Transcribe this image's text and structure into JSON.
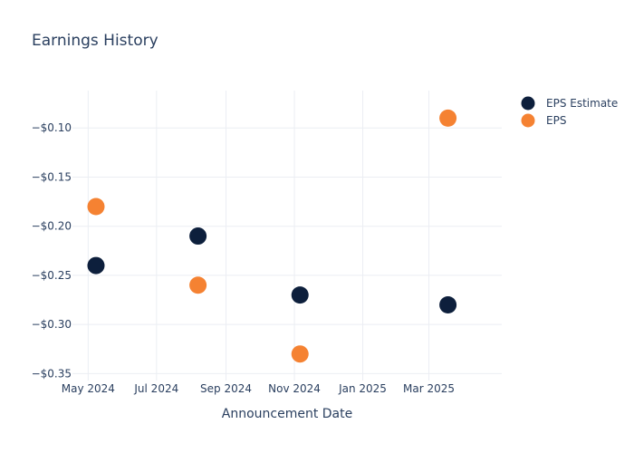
{
  "chart_data": {
    "type": "scatter",
    "title": "Earnings History",
    "xlabel": "Announcement Date",
    "ylabel": "",
    "x_ticks": [
      "May 2024",
      "Jul 2024",
      "Sep 2024",
      "Nov 2024",
      "Jan 2025",
      "Mar 2025"
    ],
    "y_ticks": [
      "−$0.10",
      "−$0.15",
      "−$0.20",
      "−$0.25",
      "−$0.30",
      "−$0.35"
    ],
    "ylim": [
      -0.357,
      -0.062
    ],
    "xlim": [
      "2024-04-17",
      "2025-05-05"
    ],
    "x": [
      "2024-05-08",
      "2024-08-07",
      "2024-11-06",
      "2025-03-18"
    ],
    "series": [
      {
        "name": "EPS Estimate",
        "color": "#0d1f3c",
        "values": [
          -0.24,
          -0.21,
          -0.27,
          -0.28
        ]
      },
      {
        "name": "EPS",
        "color": "#f58232",
        "values": [
          -0.18,
          -0.26,
          -0.33,
          -0.09
        ]
      }
    ],
    "legend": "top-right",
    "grid": true
  }
}
